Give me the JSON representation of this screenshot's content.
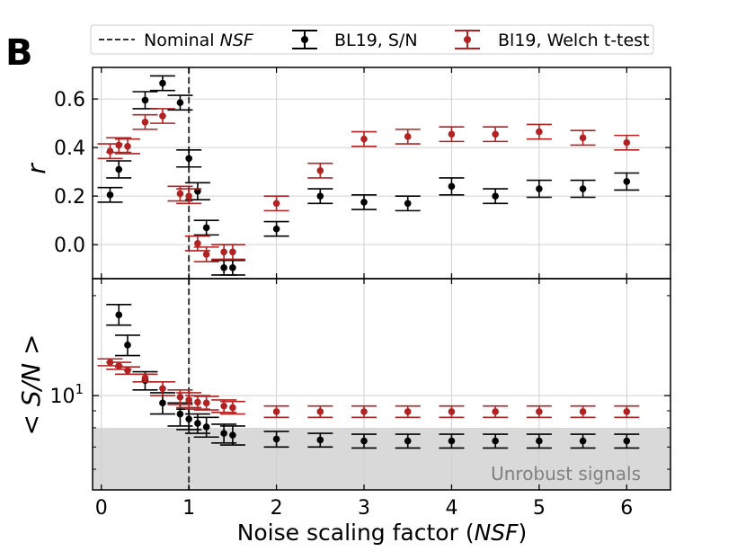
{
  "panel_label": "B",
  "chart_data": [
    {
      "type": "scatter",
      "panel": "top",
      "ylabel": "r",
      "xlabel": "Noise scaling factor (NSF)",
      "xlabel_parts": {
        "prefix": "Noise scaling factor (",
        "italic": "NSF",
        "suffix": ")"
      },
      "xlim": [
        -0.1,
        6.5
      ],
      "ylim": [
        -0.14,
        0.73
      ],
      "yticks": [
        0.0,
        0.2,
        0.4,
        0.6
      ],
      "ytick_labels": [
        "0.0",
        "0.2",
        "0.4",
        "0.6"
      ],
      "xticks": [
        0,
        1,
        2,
        3,
        4,
        5,
        6
      ],
      "xtick_labels": [
        "0",
        "1",
        "2",
        "3",
        "4",
        "5",
        "6"
      ],
      "grid": true,
      "series": [
        {
          "name": "BL19, S/N",
          "color": "#000000",
          "points": [
            {
              "x": 0.1,
              "y": 0.205,
              "err": 0.03
            },
            {
              "x": 0.2,
              "y": 0.31,
              "err": 0.035
            },
            {
              "x": 0.5,
              "y": 0.595,
              "err": 0.035
            },
            {
              "x": 0.7,
              "y": 0.665,
              "err": 0.03
            },
            {
              "x": 0.9,
              "y": 0.585,
              "err": 0.03
            },
            {
              "x": 1.0,
              "y": 0.355,
              "err": 0.035
            },
            {
              "x": 1.1,
              "y": 0.22,
              "err": 0.035
            },
            {
              "x": 1.2,
              "y": 0.07,
              "err": 0.03
            },
            {
              "x": 1.4,
              "y": -0.095,
              "err": 0.03
            },
            {
              "x": 1.5,
              "y": -0.095,
              "err": 0.03
            },
            {
              "x": 2.0,
              "y": 0.065,
              "err": 0.03
            },
            {
              "x": 2.5,
              "y": 0.2,
              "err": 0.03
            },
            {
              "x": 3.0,
              "y": 0.175,
              "err": 0.03
            },
            {
              "x": 3.5,
              "y": 0.17,
              "err": 0.03
            },
            {
              "x": 4.0,
              "y": 0.24,
              "err": 0.035
            },
            {
              "x": 4.5,
              "y": 0.2,
              "err": 0.03
            },
            {
              "x": 5.0,
              "y": 0.23,
              "err": 0.035
            },
            {
              "x": 5.5,
              "y": 0.23,
              "err": 0.035
            },
            {
              "x": 6.0,
              "y": 0.26,
              "err": 0.035
            }
          ]
        },
        {
          "name": "Bl19, Welch t-test",
          "color": "#b22222",
          "points": [
            {
              "x": 0.1,
              "y": 0.385,
              "err": 0.03
            },
            {
              "x": 0.2,
              "y": 0.41,
              "err": 0.03
            },
            {
              "x": 0.3,
              "y": 0.405,
              "err": 0.03
            },
            {
              "x": 0.5,
              "y": 0.505,
              "err": 0.03
            },
            {
              "x": 0.7,
              "y": 0.53,
              "err": 0.03
            },
            {
              "x": 0.9,
              "y": 0.21,
              "err": 0.03
            },
            {
              "x": 1.0,
              "y": 0.2,
              "err": 0.03
            },
            {
              "x": 1.1,
              "y": 0.005,
              "err": 0.03
            },
            {
              "x": 1.2,
              "y": -0.04,
              "err": 0.03
            },
            {
              "x": 1.4,
              "y": -0.03,
              "err": 0.03
            },
            {
              "x": 1.5,
              "y": -0.03,
              "err": 0.03
            },
            {
              "x": 2.0,
              "y": 0.17,
              "err": 0.03
            },
            {
              "x": 2.5,
              "y": 0.305,
              "err": 0.03
            },
            {
              "x": 3.0,
              "y": 0.435,
              "err": 0.03
            },
            {
              "x": 3.5,
              "y": 0.445,
              "err": 0.03
            },
            {
              "x": 4.0,
              "y": 0.455,
              "err": 0.03
            },
            {
              "x": 4.5,
              "y": 0.455,
              "err": 0.03
            },
            {
              "x": 5.0,
              "y": 0.465,
              "err": 0.03
            },
            {
              "x": 5.5,
              "y": 0.44,
              "err": 0.03
            },
            {
              "x": 6.0,
              "y": 0.42,
              "err": 0.03
            }
          ]
        }
      ],
      "reference_line": {
        "name": "Nominal NSF",
        "x": 1.0,
        "style": "dashed"
      }
    },
    {
      "type": "scatter",
      "panel": "bottom",
      "yscale": "log",
      "ylabel": "< S/N >",
      "xlabel": "Noise scaling factor (NSF)",
      "xlim": [
        -0.1,
        6.5
      ],
      "ylim": [
        5.2,
        22.5
      ],
      "ytick_major": [
        {
          "value": 10,
          "base": "10",
          "exp": "1"
        }
      ],
      "ytick_minor": [
        6,
        7,
        8,
        9,
        20
      ],
      "xticks": [
        0,
        1,
        2,
        3,
        4,
        5,
        6
      ],
      "xtick_labels": [
        "0",
        "1",
        "2",
        "3",
        "4",
        "5",
        "6"
      ],
      "grid": true,
      "shaded_region": {
        "label": "Unrobust signals",
        "ymax": 8.0
      },
      "series": [
        {
          "name": "BL19, S/N",
          "color": "#000000",
          "points": [
            {
              "x": 0.2,
              "y": 17.5,
              "lo": 16.3,
              "hi": 18.8
            },
            {
              "x": 0.3,
              "y": 14.2,
              "lo": 13.2,
              "hi": 15.2
            },
            {
              "x": 0.5,
              "y": 11.1,
              "lo": 10.4,
              "hi": 11.8
            },
            {
              "x": 0.7,
              "y": 9.5,
              "lo": 8.8,
              "hi": 10.2
            },
            {
              "x": 0.9,
              "y": 8.8,
              "lo": 8.1,
              "hi": 9.5
            },
            {
              "x": 1.0,
              "y": 8.5,
              "lo": 7.9,
              "hi": 9.1
            },
            {
              "x": 1.1,
              "y": 8.25,
              "lo": 7.7,
              "hi": 8.8
            },
            {
              "x": 1.2,
              "y": 8.05,
              "lo": 7.5,
              "hi": 8.6
            },
            {
              "x": 1.4,
              "y": 7.7,
              "lo": 7.2,
              "hi": 8.2
            },
            {
              "x": 1.5,
              "y": 7.6,
              "lo": 7.1,
              "hi": 8.1
            },
            {
              "x": 2.0,
              "y": 7.4,
              "lo": 7.0,
              "hi": 7.8
            },
            {
              "x": 2.5,
              "y": 7.35,
              "lo": 7.0,
              "hi": 7.7
            },
            {
              "x": 3.0,
              "y": 7.3,
              "lo": 6.95,
              "hi": 7.65
            },
            {
              "x": 3.5,
              "y": 7.3,
              "lo": 6.95,
              "hi": 7.65
            },
            {
              "x": 4.0,
              "y": 7.3,
              "lo": 6.95,
              "hi": 7.65
            },
            {
              "x": 4.5,
              "y": 7.3,
              "lo": 6.95,
              "hi": 7.65
            },
            {
              "x": 5.0,
              "y": 7.3,
              "lo": 6.95,
              "hi": 7.65
            },
            {
              "x": 5.5,
              "y": 7.3,
              "lo": 6.95,
              "hi": 7.65
            },
            {
              "x": 6.0,
              "y": 7.3,
              "lo": 6.95,
              "hi": 7.65
            }
          ]
        },
        {
          "name": "Bl19, Welch t-test",
          "color": "#b22222",
          "points": [
            {
              "x": 0.1,
              "y": 12.6,
              "lo": 12.3,
              "hi": 12.9
            },
            {
              "x": 0.2,
              "y": 12.3,
              "lo": 12.0,
              "hi": 12.6
            },
            {
              "x": 0.3,
              "y": 11.9,
              "lo": 11.6,
              "hi": 12.2
            },
            {
              "x": 0.5,
              "y": 11.3,
              "lo": 11.0,
              "hi": 11.6
            },
            {
              "x": 0.7,
              "y": 10.5,
              "lo": 10.0,
              "hi": 11.0
            },
            {
              "x": 0.9,
              "y": 9.9,
              "lo": 9.4,
              "hi": 10.4
            },
            {
              "x": 1.0,
              "y": 9.7,
              "lo": 9.2,
              "hi": 10.2
            },
            {
              "x": 1.1,
              "y": 9.55,
              "lo": 9.1,
              "hi": 10.0
            },
            {
              "x": 1.2,
              "y": 9.5,
              "lo": 9.05,
              "hi": 9.95
            },
            {
              "x": 1.4,
              "y": 9.3,
              "lo": 8.9,
              "hi": 9.7
            },
            {
              "x": 1.5,
              "y": 9.2,
              "lo": 8.8,
              "hi": 9.6
            },
            {
              "x": 2.0,
              "y": 8.95,
              "lo": 8.6,
              "hi": 9.3
            },
            {
              "x": 2.5,
              "y": 8.95,
              "lo": 8.6,
              "hi": 9.3
            },
            {
              "x": 3.0,
              "y": 8.95,
              "lo": 8.6,
              "hi": 9.3
            },
            {
              "x": 3.5,
              "y": 8.95,
              "lo": 8.6,
              "hi": 9.3
            },
            {
              "x": 4.0,
              "y": 8.95,
              "lo": 8.6,
              "hi": 9.3
            },
            {
              "x": 4.5,
              "y": 8.95,
              "lo": 8.6,
              "hi": 9.3
            },
            {
              "x": 5.0,
              "y": 8.95,
              "lo": 8.6,
              "hi": 9.3
            },
            {
              "x": 5.5,
              "y": 8.95,
              "lo": 8.6,
              "hi": 9.3
            },
            {
              "x": 6.0,
              "y": 8.95,
              "lo": 8.6,
              "hi": 9.3
            }
          ]
        }
      ],
      "reference_line": {
        "name": "Nominal NSF",
        "x": 1.0,
        "style": "dashed"
      }
    }
  ],
  "legend": {
    "placement": "top",
    "entries": [
      {
        "key": "nominal",
        "label_prefix": "Nominal ",
        "label_italic": "NSF",
        "color": "#333333"
      },
      {
        "key": "sn",
        "label": "BL19, S/N",
        "color": "#000000"
      },
      {
        "key": "welch",
        "label": "Bl19, Welch t-test",
        "color": "#b22222"
      }
    ]
  }
}
